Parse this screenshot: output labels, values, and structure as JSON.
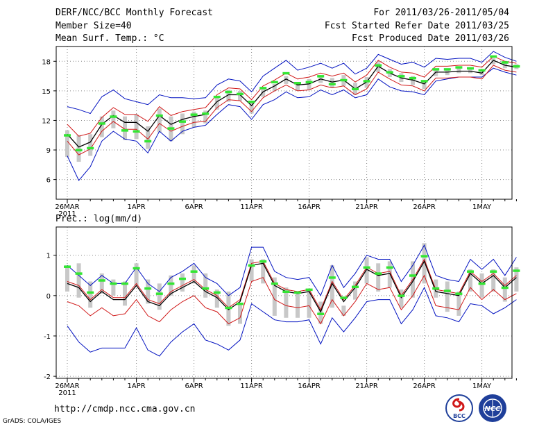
{
  "header": {
    "title": "DERF/NCC/BCC Monthly Forecast",
    "member": "Member Size=40",
    "variable": "Mean Surf. Temp.: °C",
    "period": "For 2011/03/26-2011/05/04",
    "started": "Fcst Started Refer Date 2011/03/25",
    "produced": "Fcst Produced Date 2011/03/26"
  },
  "footer": {
    "url": "http://cmdp.ncc.cma.gov.cn",
    "software": "GrADS: COLA/IGES",
    "logo1": "BCC",
    "logo2": "NCC"
  },
  "colors": {
    "ensemble_mean": "#000000",
    "spread_inner": "#d01818",
    "spread_outer": "#0010c0",
    "observed": "#33e633",
    "member_bar": "#c8c8c8",
    "grid": "#888888"
  },
  "chart_data": [
    {
      "type": "line",
      "title": "Mean Surf. Temp.: °C",
      "year_label": "2011",
      "x_labels": [
        "26MAR",
        "1APR",
        "6APR",
        "11APR",
        "16APR",
        "21APR",
        "26APR",
        "1MAY"
      ],
      "x_label_days": [
        0,
        6,
        11,
        16,
        21,
        26,
        31,
        36
      ],
      "days": 39,
      "ylim": [
        4,
        19.5
      ],
      "yticks": [
        6,
        9,
        12,
        15,
        18
      ],
      "series": [
        {
          "name": "mean",
          "values": [
            10.6,
            9.3,
            9.8,
            11.6,
            12.5,
            11.8,
            11.8,
            10.9,
            12.5,
            11.6,
            12.1,
            12.4,
            12.6,
            13.9,
            14.6,
            14.6,
            13.5,
            14.9,
            15.5,
            16.2,
            15.6,
            15.7,
            16.2,
            15.9,
            16.1,
            15.2,
            15.9,
            17.5,
            16.8,
            16.3,
            16.1,
            15.7,
            16.9,
            16.9,
            17.0,
            17.0,
            16.8,
            18.1,
            17.6,
            17.4
          ]
        },
        {
          "name": "max_red",
          "values": [
            11.6,
            10.4,
            10.7,
            12.3,
            13.3,
            12.6,
            12.6,
            11.9,
            13.4,
            12.5,
            12.9,
            13.1,
            13.3,
            14.6,
            15.3,
            15.2,
            14.1,
            15.5,
            16.1,
            16.8,
            16.2,
            16.4,
            16.8,
            16.5,
            16.8,
            15.9,
            16.6,
            18.1,
            17.4,
            16.9,
            16.8,
            16.4,
            17.5,
            17.5,
            17.6,
            17.6,
            17.4,
            18.5,
            18.0,
            17.8
          ]
        },
        {
          "name": "min_red",
          "values": [
            9.9,
            8.5,
            9.1,
            10.9,
            11.9,
            11.1,
            11.1,
            10.1,
            11.7,
            10.9,
            11.4,
            11.8,
            11.9,
            13.3,
            14.1,
            14.0,
            12.9,
            14.3,
            15.0,
            15.6,
            15.0,
            15.1,
            15.6,
            15.3,
            15.5,
            14.6,
            15.2,
            16.9,
            16.2,
            15.6,
            15.5,
            15.0,
            16.3,
            16.3,
            16.4,
            16.4,
            16.2,
            17.6,
            17.1,
            16.9
          ]
        },
        {
          "name": "max_blue",
          "values": [
            13.4,
            13.1,
            12.7,
            14.4,
            15.1,
            14.2,
            13.9,
            13.6,
            14.6,
            14.3,
            14.3,
            14.2,
            14.3,
            15.6,
            16.2,
            16.0,
            14.9,
            16.5,
            17.3,
            18.1,
            17.1,
            17.4,
            17.8,
            17.3,
            17.8,
            16.7,
            17.3,
            18.7,
            18.2,
            17.7,
            17.9,
            17.4,
            18.3,
            18.2,
            18.3,
            18.3,
            17.9,
            19.0,
            18.4,
            18.0
          ]
        },
        {
          "name": "min_blue",
          "values": [
            8.4,
            5.9,
            7.3,
            9.9,
            10.9,
            10.1,
            9.9,
            8.7,
            10.9,
            9.9,
            10.9,
            11.3,
            11.5,
            12.6,
            13.6,
            13.4,
            12.1,
            13.6,
            14.1,
            14.9,
            14.3,
            14.4,
            15.1,
            14.6,
            15.1,
            14.3,
            14.6,
            16.2,
            15.4,
            15.0,
            14.9,
            14.6,
            16.0,
            16.2,
            16.4,
            16.4,
            16.4,
            17.3,
            16.9,
            16.6
          ]
        },
        {
          "name": "observed",
          "values": [
            10.5,
            9.0,
            9.2,
            11.7,
            12.4,
            11.0,
            10.9,
            9.9,
            12.5,
            11.2,
            11.9,
            12.6,
            12.7,
            14.4,
            14.9,
            14.7,
            13.9,
            15.3,
            15.9,
            16.8,
            15.8,
            15.9,
            16.5,
            15.7,
            16.1,
            15.2,
            16.0,
            17.6,
            16.9,
            16.5,
            16.3,
            16.0,
            17.2,
            17.2,
            17.4,
            17.3,
            17.1,
            18.5,
            17.9,
            17.5
          ]
        },
        {
          "name": "bar_low",
          "values": [
            8.3,
            7.8,
            8.4,
            10.3,
            11.2,
            10.0,
            10.1,
            9.1,
            10.8,
            9.9,
            10.6,
            11.3,
            11.7,
            13.1,
            13.9,
            14.0,
            12.7,
            14.4,
            15.0,
            15.7,
            15.0,
            15.1,
            15.8,
            15.3,
            15.5,
            14.6,
            15.3,
            16.9,
            16.4,
            15.9,
            15.6,
            15.2,
            16.5,
            16.6,
            16.8,
            16.8,
            16.6,
            17.7,
            17.3,
            17.2
          ]
        },
        {
          "name": "bar_high",
          "values": [
            11.0,
            10.5,
            10.6,
            12.4,
            13.0,
            12.4,
            12.6,
            11.4,
            13.2,
            12.4,
            12.7,
            12.9,
            13.0,
            14.5,
            15.1,
            15.0,
            13.9,
            15.2,
            15.7,
            16.5,
            15.9,
            16.2,
            16.5,
            16.3,
            16.6,
            15.8,
            16.4,
            17.9,
            17.2,
            16.8,
            16.5,
            16.1,
            17.2,
            17.2,
            17.3,
            17.3,
            17.2,
            18.3,
            17.9,
            17.7
          ]
        }
      ]
    },
    {
      "type": "line",
      "title": "Prec.: log(mm/d)",
      "year_label": "2011",
      "x_labels": [
        "26MAR",
        "1APR",
        "6APR",
        "11APR",
        "16APR",
        "21APR",
        "26APR",
        "1MAY"
      ],
      "x_label_days": [
        0,
        6,
        11,
        16,
        21,
        26,
        31,
        36
      ],
      "days": 39,
      "ylim": [
        -2.05,
        1.7
      ],
      "yticks": [
        -2,
        -1,
        0,
        1
      ],
      "series": [
        {
          "name": "mean",
          "values": [
            0.3,
            0.2,
            -0.15,
            0.1,
            -0.1,
            -0.1,
            0.25,
            -0.15,
            -0.25,
            0.05,
            0.2,
            0.35,
            0.1,
            -0.05,
            -0.35,
            -0.15,
            0.75,
            0.8,
            0.25,
            0.1,
            0.05,
            0.1,
            -0.4,
            0.3,
            -0.15,
            0.2,
            0.65,
            0.5,
            0.55,
            -0.05,
            0.35,
            0.85,
            0.1,
            0.05,
            0.0,
            0.55,
            0.3,
            0.5,
            0.2,
            0.45
          ]
        },
        {
          "name": "max_red",
          "values": [
            0.35,
            0.25,
            -0.1,
            0.15,
            -0.05,
            -0.05,
            0.3,
            -0.1,
            -0.2,
            0.1,
            0.25,
            0.4,
            0.15,
            0.0,
            -0.3,
            -0.1,
            0.8,
            0.85,
            0.3,
            0.15,
            0.1,
            0.15,
            -0.35,
            0.35,
            -0.1,
            0.25,
            0.7,
            0.55,
            0.6,
            0.0,
            0.4,
            0.9,
            0.15,
            0.1,
            0.05,
            0.6,
            0.35,
            0.55,
            0.25,
            0.5
          ]
        },
        {
          "name": "min_red",
          "values": [
            -0.15,
            -0.25,
            -0.5,
            -0.3,
            -0.5,
            -0.45,
            -0.1,
            -0.5,
            -0.65,
            -0.35,
            -0.15,
            0.0,
            -0.3,
            -0.4,
            -0.7,
            -0.55,
            0.35,
            0.45,
            -0.1,
            -0.25,
            -0.3,
            -0.25,
            -0.7,
            -0.1,
            -0.5,
            -0.15,
            0.3,
            0.15,
            0.2,
            -0.35,
            0.0,
            0.5,
            -0.25,
            -0.3,
            -0.35,
            0.2,
            -0.1,
            0.15,
            -0.1,
            0.05
          ]
        },
        {
          "name": "max_blue",
          "values": [
            0.75,
            0.5,
            0.25,
            0.5,
            0.3,
            0.3,
            0.7,
            0.3,
            0.1,
            0.45,
            0.6,
            0.8,
            0.45,
            0.3,
            0.0,
            0.2,
            1.2,
            1.2,
            0.6,
            0.45,
            0.4,
            0.45,
            0.0,
            0.75,
            0.2,
            0.55,
            1.0,
            0.9,
            0.9,
            0.35,
            0.75,
            1.25,
            0.5,
            0.4,
            0.35,
            0.9,
            0.65,
            0.9,
            0.5,
            0.95
          ]
        },
        {
          "name": "min_blue",
          "values": [
            -0.75,
            -1.15,
            -1.4,
            -1.3,
            -1.3,
            -1.3,
            -0.8,
            -1.35,
            -1.5,
            -1.15,
            -0.9,
            -0.7,
            -1.1,
            -1.2,
            -1.35,
            -1.1,
            -0.2,
            -0.4,
            -0.6,
            -0.65,
            -0.65,
            -0.6,
            -1.2,
            -0.55,
            -0.9,
            -0.55,
            -0.15,
            -0.1,
            -0.1,
            -0.7,
            -0.35,
            0.2,
            -0.5,
            -0.55,
            -0.65,
            -0.2,
            -0.25,
            -0.45,
            -0.3,
            -0.1
          ]
        },
        {
          "name": "observed",
          "values": [
            0.72,
            0.55,
            0.08,
            0.38,
            0.3,
            0.3,
            0.68,
            0.18,
            0.05,
            0.3,
            0.42,
            0.6,
            0.18,
            0.08,
            -0.3,
            -0.2,
            0.75,
            0.85,
            0.3,
            0.1,
            0.08,
            0.15,
            -0.45,
            0.45,
            -0.05,
            0.22,
            0.7,
            0.55,
            0.7,
            0.0,
            0.5,
            0.98,
            0.18,
            0.12,
            0.05,
            0.6,
            0.3,
            0.6,
            0.2,
            0.62
          ]
        },
        {
          "name": "bar_low",
          "values": [
            0.1,
            -0.05,
            -0.3,
            0.05,
            0.0,
            -0.25,
            0.25,
            -0.2,
            -0.35,
            0.0,
            0.1,
            0.3,
            -0.05,
            -0.3,
            -0.75,
            -0.7,
            0.35,
            0.3,
            -0.5,
            -0.55,
            -0.55,
            -0.55,
            -0.7,
            -0.3,
            -0.5,
            -0.1,
            0.3,
            0.1,
            0.2,
            -0.3,
            -0.05,
            0.3,
            -0.05,
            -0.4,
            -0.5,
            0.1,
            -0.05,
            0.1,
            -0.15,
            0.1
          ]
        },
        {
          "name": "bar_high",
          "values": [
            0.75,
            0.8,
            0.35,
            0.55,
            0.4,
            0.35,
            0.8,
            0.4,
            0.3,
            0.5,
            0.55,
            0.75,
            0.55,
            0.15,
            0.1,
            -0.2,
            0.9,
            0.9,
            0.45,
            0.2,
            0.05,
            0.1,
            -0.15,
            0.75,
            -0.25,
            0.35,
            0.95,
            0.8,
            0.85,
            0.15,
            0.85,
            1.3,
            0.4,
            0.35,
            0.1,
            0.65,
            0.55,
            0.65,
            0.45,
            0.7
          ]
        }
      ]
    }
  ]
}
